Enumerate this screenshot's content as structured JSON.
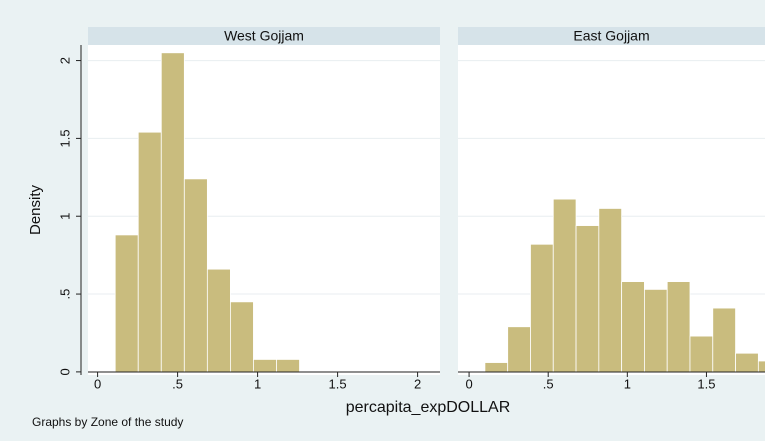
{
  "chart_data": [
    {
      "type": "histogram",
      "title": "West Gojjam",
      "bins": [
        0.11,
        0.254,
        0.398,
        0.542,
        0.686,
        0.83,
        0.974,
        1.118,
        1.262
      ],
      "values": [
        0.88,
        1.54,
        2.05,
        1.24,
        0.66,
        0.45,
        0.08,
        0.08
      ],
      "color": "#c9bc7e",
      "xlim": [
        -0.06,
        2.14
      ],
      "ylim": [
        -0.02,
        2.1
      ],
      "xticks": [
        0,
        {
          "value": 0.5,
          "label": ".5"
        },
        1,
        1.5,
        2
      ],
      "yticks": [
        0,
        {
          "value": 0.5,
          "label": ".5"
        },
        1,
        1.5,
        2
      ],
      "grid": true
    },
    {
      "type": "histogram",
      "title": "East Gojjam",
      "bins": [
        0.1,
        0.244,
        0.388,
        0.532,
        0.676,
        0.82,
        0.964,
        1.108,
        1.252,
        1.396,
        1.54,
        1.684,
        1.828,
        1.972
      ],
      "values": [
        0.06,
        0.29,
        0.82,
        1.11,
        0.94,
        1.05,
        0.58,
        0.53,
        0.58,
        0.23,
        0.41,
        0.12,
        0.07
      ],
      "color": "#c9bc7e",
      "xlim": [
        -0.07,
        1.87
      ],
      "ylim": [
        -0.02,
        2.1
      ],
      "xticks": [
        0,
        {
          "value": 0.5,
          "label": ".5"
        },
        1,
        1.5
      ],
      "yticks": [
        0,
        0.5,
        1,
        1.5,
        2
      ],
      "ytick_labels": false,
      "grid": true
    }
  ],
  "ylabel": "Density",
  "xlabel": "percapita_expDOLLAR",
  "note": "Graphs by Zone of the study"
}
